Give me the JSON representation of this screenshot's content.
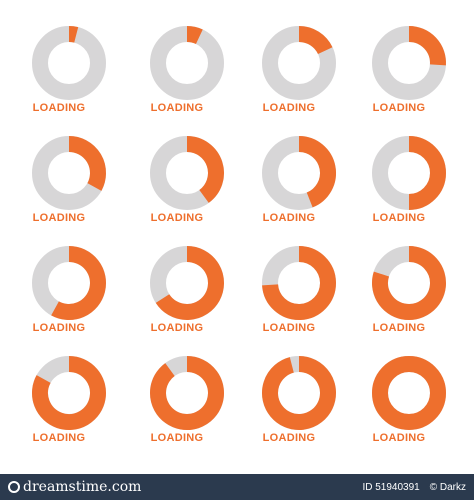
{
  "colors": {
    "track": "#d7d6d7",
    "progress": "#ee6f2d",
    "label": "#ee6f2d",
    "footer_background": "#2b3a4e",
    "footer_text": "#ffffff"
  },
  "loaders": [
    {
      "label": "LOADING",
      "progress": 0.04
    },
    {
      "label": "LOADING",
      "progress": 0.07
    },
    {
      "label": "LOADING",
      "progress": 0.18
    },
    {
      "label": "LOADING",
      "progress": 0.26
    },
    {
      "label": "LOADING",
      "progress": 0.33
    },
    {
      "label": "LOADING",
      "progress": 0.4
    },
    {
      "label": "LOADING",
      "progress": 0.44
    },
    {
      "label": "LOADING",
      "progress": 0.5
    },
    {
      "label": "LOADING",
      "progress": 0.58
    },
    {
      "label": "LOADING",
      "progress": 0.66
    },
    {
      "label": "LOADING",
      "progress": 0.74
    },
    {
      "label": "LOADING",
      "progress": 0.8
    },
    {
      "label": "LOADING",
      "progress": 0.83
    },
    {
      "label": "LOADING",
      "progress": 0.9
    },
    {
      "label": "LOADING",
      "progress": 0.96
    },
    {
      "label": "LOADING",
      "progress": 1.0
    }
  ],
  "footer": {
    "brand": "dreamstime.com",
    "image_id": "ID 51940391",
    "author": "© Darkz"
  }
}
